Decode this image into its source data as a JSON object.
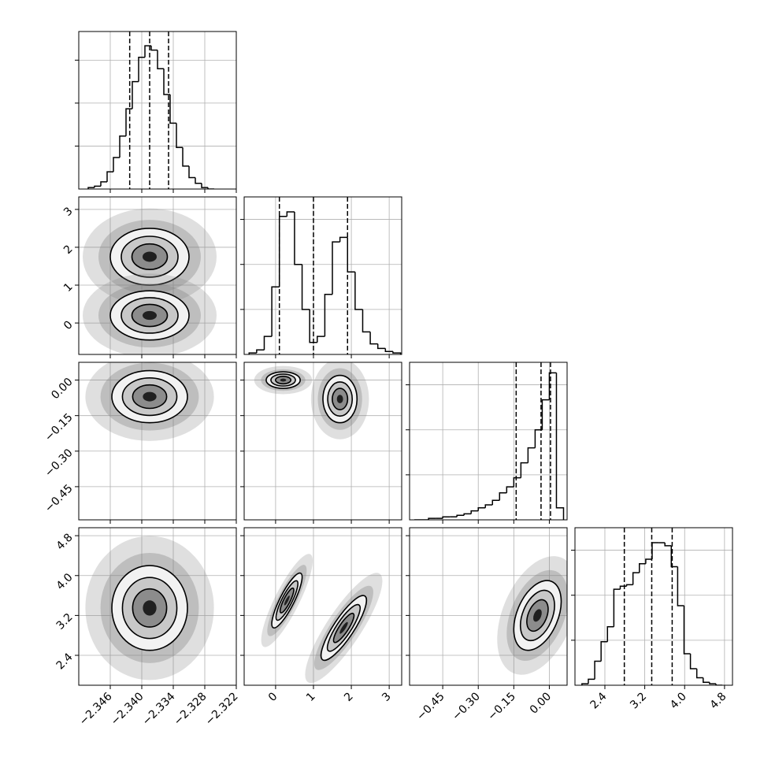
{
  "chart_data": {
    "type": "corner",
    "color": "#000000",
    "shade_color": "#808080",
    "grid": true,
    "params": [
      {
        "lim": [
          -2.352,
          -2.322
        ],
        "ticks": [
          {
            "value": -2.346,
            "label": "−2.346"
          },
          {
            "value": -2.34,
            "label": "−2.340"
          },
          {
            "value": -2.334,
            "label": "−2.334"
          },
          {
            "value": -2.328,
            "label": "−2.328"
          },
          {
            "value": -2.322,
            "label": "−2.322"
          }
        ]
      },
      {
        "lim": [
          -0.83,
          3.33
        ],
        "ticks": [
          0,
          1,
          2,
          3
        ]
      },
      {
        "lim": [
          -0.59,
          0.075
        ],
        "ticks": [
          {
            "value": -0.45,
            "label": "−0.45"
          },
          {
            "value": -0.3,
            "label": "−0.30"
          },
          {
            "value": -0.15,
            "label": "−0.15"
          },
          {
            "value": 0,
            "label": "0.00"
          }
        ]
      },
      {
        "lim": [
          1.8,
          4.96
        ],
        "ticks": [
          2.4,
          3.2,
          {
            "value": 4,
            "label": "4.0"
          },
          4.8
        ]
      }
    ],
    "hists": [
      {
        "ylim": [
          0,
          110
        ],
        "yticks": [
          30,
          60,
          90
        ],
        "quantiles": [
          -2.3423,
          -2.3385,
          -2.3349
        ],
        "bins": [
          -2.3502,
          -2.349,
          -2.3478,
          -2.3466,
          -2.3454,
          -2.3442,
          -2.343,
          -2.3418,
          -2.3406,
          -2.3394,
          -2.3382,
          -2.337,
          -2.3358,
          -2.3346,
          -2.3334,
          -2.3322,
          -2.331,
          -2.3298,
          -2.3286,
          -2.3274,
          -2.3262
        ],
        "counts": [
          1,
          2,
          5,
          12,
          22,
          37,
          56,
          75,
          92,
          100,
          97,
          84,
          66,
          46,
          29,
          16,
          8,
          4,
          1,
          0
        ]
      },
      {
        "ylim": [
          0,
          105
        ],
        "yticks": [
          30,
          60,
          90
        ],
        "quantiles": [
          0.1,
          1.0,
          1.9
        ],
        "bins": [
          -0.7,
          -0.5,
          -0.3,
          -0.1,
          0.1,
          0.3,
          0.5,
          0.7,
          0.9,
          1.1,
          1.3,
          1.5,
          1.7,
          1.9,
          2.1,
          2.3,
          2.5,
          2.7,
          2.9,
          3.1,
          3.3
        ],
        "counts": [
          1,
          3,
          12,
          45,
          92,
          95,
          60,
          30,
          8,
          12,
          40,
          75,
          78,
          55,
          30,
          15,
          7,
          4,
          2,
          1
        ]
      },
      {
        "ylim": [
          0,
          105
        ],
        "yticks": [
          30,
          60,
          90
        ],
        "quantiles": [
          -0.14,
          -0.035,
          0.005
        ],
        "bins": [
          -0.57,
          -0.54,
          -0.51,
          -0.48,
          -0.45,
          -0.42,
          -0.39,
          -0.36,
          -0.33,
          -0.3,
          -0.27,
          -0.24,
          -0.21,
          -0.18,
          -0.15,
          -0.12,
          -0.09,
          -0.06,
          -0.03,
          0,
          0.03,
          0.06
        ],
        "counts": [
          0,
          0,
          1,
          1,
          2,
          2,
          3,
          4,
          6,
          8,
          10,
          13,
          18,
          22,
          28,
          38,
          48,
          60,
          80,
          98,
          8
        ]
      },
      {
        "ylim": [
          0,
          105
        ],
        "yticks": [
          30,
          60,
          90
        ],
        "quantiles": [
          2.79,
          3.34,
          3.75
        ],
        "bins": [
          1.94,
          2.068,
          2.196,
          2.324,
          2.452,
          2.58,
          2.708,
          2.836,
          2.964,
          3.092,
          3.22,
          3.348,
          3.476,
          3.604,
          3.732,
          3.86,
          3.988,
          4.116,
          4.244,
          4.372,
          4.5,
          4.628,
          4.756
        ],
        "counts": [
          1,
          4,
          16,
          29,
          39,
          64,
          66,
          67,
          75,
          81,
          84,
          95,
          95,
          93,
          79,
          53,
          21,
          11,
          5,
          2,
          1,
          0
        ]
      }
    ],
    "panels": [
      {
        "blobs": [
          {
            "x": -2.3385,
            "y": 1.75,
            "sx": 0.0075,
            "sy": 0.75,
            "rho": 0
          },
          {
            "x": -2.3385,
            "y": 0.2,
            "sx": 0.0075,
            "sy": 0.65,
            "rho": 0
          }
        ]
      },
      {
        "blobs": [
          {
            "x": -2.3385,
            "y": -0.07,
            "sx": 0.0072,
            "sy": 0.11,
            "rho": 0
          }
        ]
      },
      {
        "blobs": [
          {
            "x": 0.2,
            "y": 0.0,
            "sx": 0.45,
            "sy": 0.035,
            "rho": 0
          },
          {
            "x": 1.7,
            "y": -0.08,
            "sx": 0.45,
            "sy": 0.1,
            "rho": 0
          }
        ]
      },
      {
        "blobs": [
          {
            "x": -2.3385,
            "y": 3.35,
            "sx": 0.0072,
            "sy": 0.85,
            "rho": 0
          }
        ]
      },
      {
        "blobs": [
          {
            "x": 0.3,
            "y": 3.5,
            "sx": 0.4,
            "sy": 0.55,
            "rho": 0.85
          },
          {
            "x": 1.8,
            "y": 2.95,
            "sx": 0.6,
            "sy": 0.65,
            "rho": 0.85
          }
        ]
      },
      {
        "blobs": [
          {
            "x": -0.05,
            "y": 3.2,
            "sx": 0.1,
            "sy": 0.7,
            "rho": 0.4
          }
        ]
      }
    ]
  }
}
